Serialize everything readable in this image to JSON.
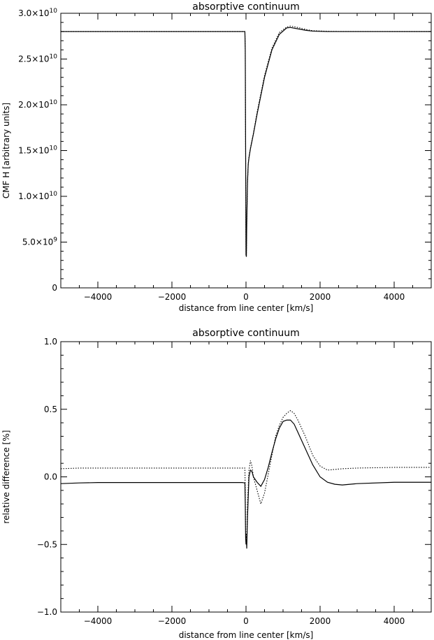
{
  "chart_data": [
    {
      "type": "line",
      "title": "absorptive continuum",
      "xlabel": "distance from line center [km/s]",
      "ylabel": "CMF H [arbitrary units]",
      "xlim": [
        -5000,
        5000
      ],
      "ylim": [
        0,
        30000000000
      ],
      "x_ticks": [
        -4000,
        -2000,
        0,
        2000,
        4000
      ],
      "x_tick_labels": [
        "−4000",
        "−2000",
        "0",
        "2000",
        "4000"
      ],
      "y_ticks": [
        0,
        5000000000,
        10000000000,
        15000000000,
        20000000000,
        25000000000,
        30000000000
      ],
      "y_tick_labels": [
        {
          "base": "0",
          "exp": ""
        },
        {
          "base": "5.0×10",
          "exp": "9"
        },
        {
          "base": "1.0×10",
          "exp": "10"
        },
        {
          "base": "1.5×10",
          "exp": "10"
        },
        {
          "base": "2.0×10",
          "exp": "10"
        },
        {
          "base": "2.5×10",
          "exp": "10"
        },
        {
          "base": "3.0×10",
          "exp": "10"
        }
      ],
      "series": [
        {
          "style": "solid",
          "x": [
            -5000,
            -30,
            -20,
            -10,
            0,
            10,
            20,
            40,
            60,
            80,
            120,
            200,
            300,
            500,
            700,
            900,
            1100,
            1200,
            1400,
            1600,
            1800,
            2200,
            2600,
            5000
          ],
          "y": [
            28000000000,
            28000000000,
            26000000000,
            15000000000,
            3600000000,
            3400000000,
            7000000000,
            11500000000,
            13500000000,
            14200000000,
            15200000000,
            16800000000,
            19000000000,
            23000000000,
            26000000000,
            27700000000,
            28400000000,
            28450000000,
            28300000000,
            28150000000,
            28050000000,
            28000000000,
            28000000000,
            28000000000
          ]
        },
        {
          "style": "dotted",
          "x": [
            -5000,
            -30,
            -20,
            -10,
            0,
            10,
            20,
            40,
            60,
            80,
            120,
            200,
            300,
            500,
            700,
            900,
            1100,
            1200,
            1400,
            1600,
            1800,
            2200,
            2600,
            5000
          ],
          "y": [
            28000000000,
            28000000000,
            26000000000,
            15000000000,
            3700000000,
            3500000000,
            7000000000,
            11500000000,
            13500000000,
            14300000000,
            15300000000,
            16900000000,
            19200000000,
            23200000000,
            26200000000,
            27900000000,
            28500000000,
            28600000000,
            28450000000,
            28250000000,
            28100000000,
            28030000000,
            28010000000,
            28000000000
          ]
        }
      ]
    },
    {
      "type": "line",
      "title": "absorptive continuum",
      "xlabel": "distance from line center [km/s]",
      "ylabel": "relative difference [%]",
      "xlim": [
        -5000,
        5000
      ],
      "ylim": [
        -1.0,
        1.0
      ],
      "x_ticks": [
        -4000,
        -2000,
        0,
        2000,
        4000
      ],
      "x_tick_labels": [
        "−4000",
        "−2000",
        "0",
        "2000",
        "4000"
      ],
      "y_ticks": [
        -1.0,
        -0.5,
        0.0,
        0.5,
        1.0
      ],
      "y_tick_labels": [
        {
          "base": "−1.0",
          "exp": ""
        },
        {
          "base": "−0.5",
          "exp": ""
        },
        {
          "base": "0.0",
          "exp": ""
        },
        {
          "base": "0.5",
          "exp": ""
        },
        {
          "base": "1.0",
          "exp": ""
        }
      ],
      "series": [
        {
          "style": "solid",
          "x": [
            -5000,
            -4500,
            -4000,
            -3000,
            -2000,
            -1000,
            -100,
            -30,
            -20,
            -10,
            0,
            10,
            20,
            40,
            80,
            120,
            160,
            200,
            300,
            400,
            500,
            600,
            700,
            800,
            900,
            1000,
            1100,
            1200,
            1300,
            1400,
            1600,
            1800,
            2000,
            2200,
            2400,
            2600,
            3000,
            4000,
            5000
          ],
          "y": [
            -0.05,
            -0.045,
            -0.042,
            -0.042,
            -0.042,
            -0.042,
            -0.042,
            -0.045,
            -0.2,
            -0.45,
            -0.5,
            -0.46,
            -0.53,
            -0.3,
            0.0,
            0.05,
            0.04,
            0.0,
            -0.04,
            -0.07,
            -0.02,
            0.07,
            0.18,
            0.28,
            0.36,
            0.41,
            0.42,
            0.42,
            0.39,
            0.33,
            0.21,
            0.09,
            0.0,
            -0.04,
            -0.055,
            -0.06,
            -0.05,
            -0.04,
            -0.04
          ]
        },
        {
          "style": "dotted",
          "x": [
            -5000,
            -4500,
            -4000,
            -3000,
            -2000,
            -1000,
            -100,
            -30,
            -20,
            -10,
            0,
            10,
            20,
            40,
            80,
            120,
            160,
            200,
            300,
            400,
            500,
            600,
            700,
            800,
            900,
            1000,
            1100,
            1200,
            1300,
            1400,
            1600,
            1800,
            2000,
            2200,
            2400,
            2600,
            3000,
            4000,
            5000
          ],
          "y": [
            0.06,
            0.065,
            0.065,
            0.065,
            0.065,
            0.065,
            0.065,
            0.065,
            -0.1,
            -0.38,
            -0.48,
            -0.42,
            -0.48,
            -0.2,
            0.05,
            0.12,
            0.08,
            0.0,
            -0.1,
            -0.2,
            -0.12,
            0.02,
            0.16,
            0.3,
            0.38,
            0.44,
            0.47,
            0.49,
            0.47,
            0.42,
            0.3,
            0.16,
            0.08,
            0.05,
            0.055,
            0.06,
            0.065,
            0.07,
            0.07
          ]
        }
      ]
    }
  ]
}
